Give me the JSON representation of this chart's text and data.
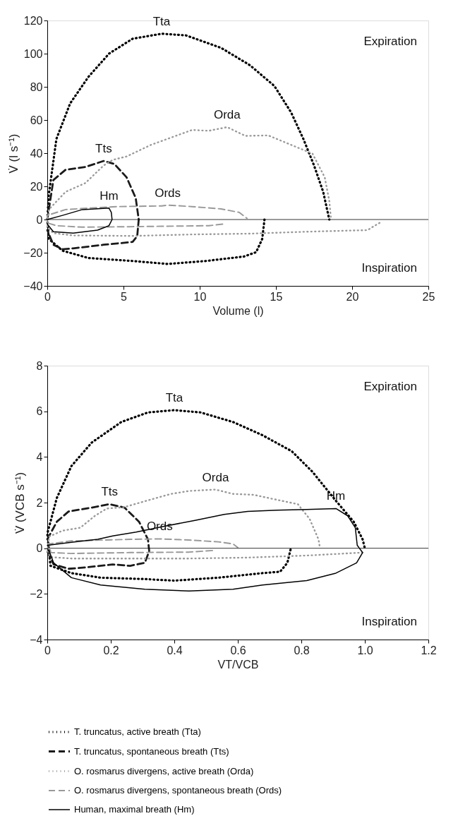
{
  "chart_data": [
    {
      "type": "line",
      "xlabel": "Volume (l)",
      "ylabel": "V̇ (l s⁻¹)",
      "xlim": [
        0,
        25
      ],
      "ylim": [
        -40,
        120
      ],
      "xticks": [
        0,
        5,
        10,
        15,
        20,
        25
      ],
      "yticks": [
        -40,
        -20,
        0,
        20,
        40,
        60,
        80,
        100,
        120
      ],
      "grid": false,
      "legend": "bottom",
      "ref_lines": [
        {
          "axis": "y",
          "value": 0,
          "color": "#000000"
        }
      ],
      "annotations": [
        "Expiration",
        "Inspiration",
        "Tta",
        "Tts",
        "Orda",
        "Ords",
        "Hm"
      ],
      "series": [
        {
          "name": "T. truncatus, active breath (Tta)",
          "color": "#000000",
          "line_style": "dotted",
          "x": [
            14.25,
            14.1,
            13.7,
            12.9,
            10.4,
            7.9,
            5.6,
            2.7,
            1.0,
            0.1,
            0,
            0.1,
            0.6,
            1.5,
            2.7,
            4.05,
            5.6,
            7.5,
            9.1,
            11.4,
            13.3,
            14.9,
            16.0,
            16.8,
            17.5,
            18.1,
            18.5
          ],
          "values": [
            0,
            -11.7,
            -19.7,
            -22.3,
            -25,
            -26.8,
            -25,
            -23.2,
            -18.8,
            -11.7,
            0,
            15,
            48.6,
            70,
            86,
            100,
            109,
            112,
            111,
            103.5,
            93,
            80.5,
            64.5,
            48.6,
            32.6,
            16.7,
            0
          ]
        },
        {
          "name": "T. truncatus, spontaneous breath (Tts)",
          "color": "#1a1a1a",
          "line_style": "dashed",
          "x": [
            0,
            0.4,
            1.2,
            2.5,
            3.7,
            4.4,
            5.2,
            5.8,
            6.0,
            5.9,
            5.6,
            4.6,
            3.7,
            1.7,
            1.0,
            0.4,
            0
          ],
          "values": [
            0,
            23.8,
            30,
            31.7,
            35.3,
            33.5,
            25.5,
            13,
            0,
            -10,
            -13.5,
            -14.4,
            -15.2,
            -17.4,
            -17.9,
            -15.2,
            -6.4
          ]
        },
        {
          "name": "O. rosmarus divergens, active breath (Orda)",
          "color": "#999999",
          "line_style": "dotted",
          "x": [
            21.8,
            21.0,
            17.2,
            13.3,
            9.5,
            5.6,
            1.7,
            0.4,
            0,
            0.1,
            1.2,
            2.5,
            3.7,
            4.3,
            5.2,
            6.8,
            8.3,
            9.5,
            10.6,
            11.8,
            13.0,
            14.5,
            16.0,
            17.4,
            18.2,
            18.5,
            18.6
          ],
          "values": [
            -2,
            -6.4,
            -7.3,
            -8.5,
            -9,
            -9.9,
            -9.6,
            -8.2,
            -4.6,
            6,
            16.7,
            22,
            32.6,
            36,
            38,
            45,
            50,
            54,
            53.5,
            55.7,
            50.4,
            50.7,
            45,
            39.7,
            25.5,
            11.3,
            1.6
          ]
        },
        {
          "name": "O. rosmarus divergens, spontaneous breath (Ords)",
          "color": "#999999",
          "line_style": "dashed",
          "x": [
            11.5,
            10.6,
            5.6,
            2.3,
            0.6,
            0,
            0,
            1.2,
            2.7,
            4.6,
            7.5,
            7.9,
            9.5,
            11.4,
            12.6,
            13.1
          ],
          "values": [
            -2.8,
            -3.7,
            -4.3,
            -4.6,
            -3.7,
            -2,
            2.5,
            6,
            6.9,
            7.8,
            8.2,
            8.7,
            7.8,
            6.4,
            4.3,
            0.7
          ]
        },
        {
          "name": "Human, maximal breath (Hm)",
          "color": "#000000",
          "line_style": "solid",
          "x": [
            0,
            1,
            2.3,
            3.1,
            4.05,
            4.2,
            4.25,
            4.05,
            3.3,
            1.7,
            0.4,
            0
          ],
          "values": [
            0,
            2.5,
            6,
            6.4,
            6.9,
            4.3,
            0,
            -3.7,
            -6.4,
            -8.2,
            -7.3,
            -2.8
          ]
        }
      ]
    },
    {
      "type": "line",
      "xlabel": "VT/VCB",
      "ylabel": "V̇ (VCB s⁻¹)",
      "xlim": [
        0,
        1.2
      ],
      "ylim": [
        -4,
        8
      ],
      "xticks": [
        {
          "value": 0,
          "label": "0"
        },
        0.2,
        0.4,
        0.6,
        0.8,
        {
          "value": 1,
          "label": "1.0"
        },
        1.2
      ],
      "yticks": [
        -4,
        -2,
        0,
        2,
        4,
        6,
        8
      ],
      "grid": false,
      "legend": "bottom",
      "ref_lines": [
        {
          "axis": "y",
          "value": 0,
          "color": "#000000"
        }
      ],
      "annotations": [
        "Expiration",
        "Inspiration",
        "Tta",
        "Tts",
        "Orda",
        "Ords",
        "Hm"
      ],
      "series": [
        {
          "name": "T. truncatus, active breath (Tta)",
          "color": "#000000",
          "line_style": "dotted",
          "x": [
            0.766,
            0.756,
            0.733,
            0.678,
            0.539,
            0.4,
            0.307,
            0.168,
            0.076,
            0.01,
            0,
            0.03,
            0.076,
            0.14,
            0.233,
            0.317,
            0.4,
            0.483,
            0.585,
            0.678,
            0.77,
            0.835,
            0.91,
            0.965,
            0.993,
            1.0
          ],
          "values": [
            -0.06,
            -0.64,
            -1.03,
            -1.09,
            -1.29,
            -1.42,
            -1.35,
            -1.29,
            -1.09,
            -0.77,
            0.64,
            2.2,
            3.6,
            4.63,
            5.53,
            5.95,
            6.05,
            5.95,
            5.53,
            4.95,
            4.25,
            3.35,
            2.06,
            1.16,
            0.39,
            0
          ]
        },
        {
          "name": "T. truncatus, spontaneous breath (Tts)",
          "color": "#1a1a1a",
          "line_style": "dashed",
          "x": [
            0,
            0.03,
            0.067,
            0.14,
            0.196,
            0.243,
            0.289,
            0.317,
            0.321,
            0.307,
            0.261,
            0.206,
            0.122,
            0.067,
            0.02,
            0
          ],
          "values": [
            0.39,
            1.16,
            1.61,
            1.78,
            1.93,
            1.78,
            1.16,
            0.39,
            -0.13,
            -0.64,
            -0.77,
            -0.71,
            -0.84,
            -0.9,
            -0.71,
            -0.13
          ]
        },
        {
          "name": "O. rosmarus divergens, active breath (Orda)",
          "color": "#999999",
          "line_style": "dotted",
          "x": [
            0.993,
            0.817,
            0.631,
            0.446,
            0.261,
            0.076,
            0.011,
            0,
            0.006,
            0.048,
            0.104,
            0.15,
            0.187,
            0.243,
            0.307,
            0.39,
            0.446,
            0.53,
            0.585,
            0.65,
            0.724,
            0.789,
            0.826,
            0.854,
            0.858
          ],
          "values": [
            -0.19,
            -0.32,
            -0.41,
            -0.45,
            -0.45,
            -0.45,
            -0.39,
            -0.13,
            0.51,
            0.77,
            0.9,
            1.42,
            1.74,
            1.8,
            2.06,
            2.38,
            2.51,
            2.57,
            2.38,
            2.34,
            2.12,
            1.93,
            1.29,
            0.39,
            0.06
          ]
        },
        {
          "name": "O. rosmarus divergens, spontaneous breath (Ords)",
          "color": "#999999",
          "line_style": "dashed",
          "x": [
            0.52,
            0.446,
            0.261,
            0.076,
            0.011,
            0.006,
            0.076,
            0.261,
            0.354,
            0.446,
            0.539,
            0.585,
            0.6
          ],
          "values": [
            -0.1,
            -0.17,
            -0.19,
            -0.23,
            -0.19,
            0.19,
            0.32,
            0.39,
            0.41,
            0.36,
            0.28,
            0.19,
            0.03
          ]
        },
        {
          "name": "Human, maximal breath (Hm)",
          "color": "#000000",
          "line_style": "solid",
          "x": [
            0,
            0.076,
            0.159,
            0.206,
            0.28,
            0.372,
            0.465,
            0.557,
            0.631,
            0.724,
            0.817,
            0.909,
            0.946,
            0.97,
            0.976,
            0.993,
            0.974,
            0.909,
            0.817,
            0.678,
            0.585,
            0.446,
            0.307,
            0.168,
            0.076,
            0.02,
            0.006
          ],
          "values": [
            0.13,
            0.26,
            0.39,
            0.54,
            0.71,
            0.97,
            1.22,
            1.48,
            1.61,
            1.67,
            1.7,
            1.74,
            1.42,
            0.9,
            0.13,
            -0.19,
            -0.64,
            -1.09,
            -1.42,
            -1.61,
            -1.8,
            -1.87,
            -1.8,
            -1.61,
            -1.29,
            -0.64,
            -0.13
          ]
        }
      ]
    }
  ]
}
